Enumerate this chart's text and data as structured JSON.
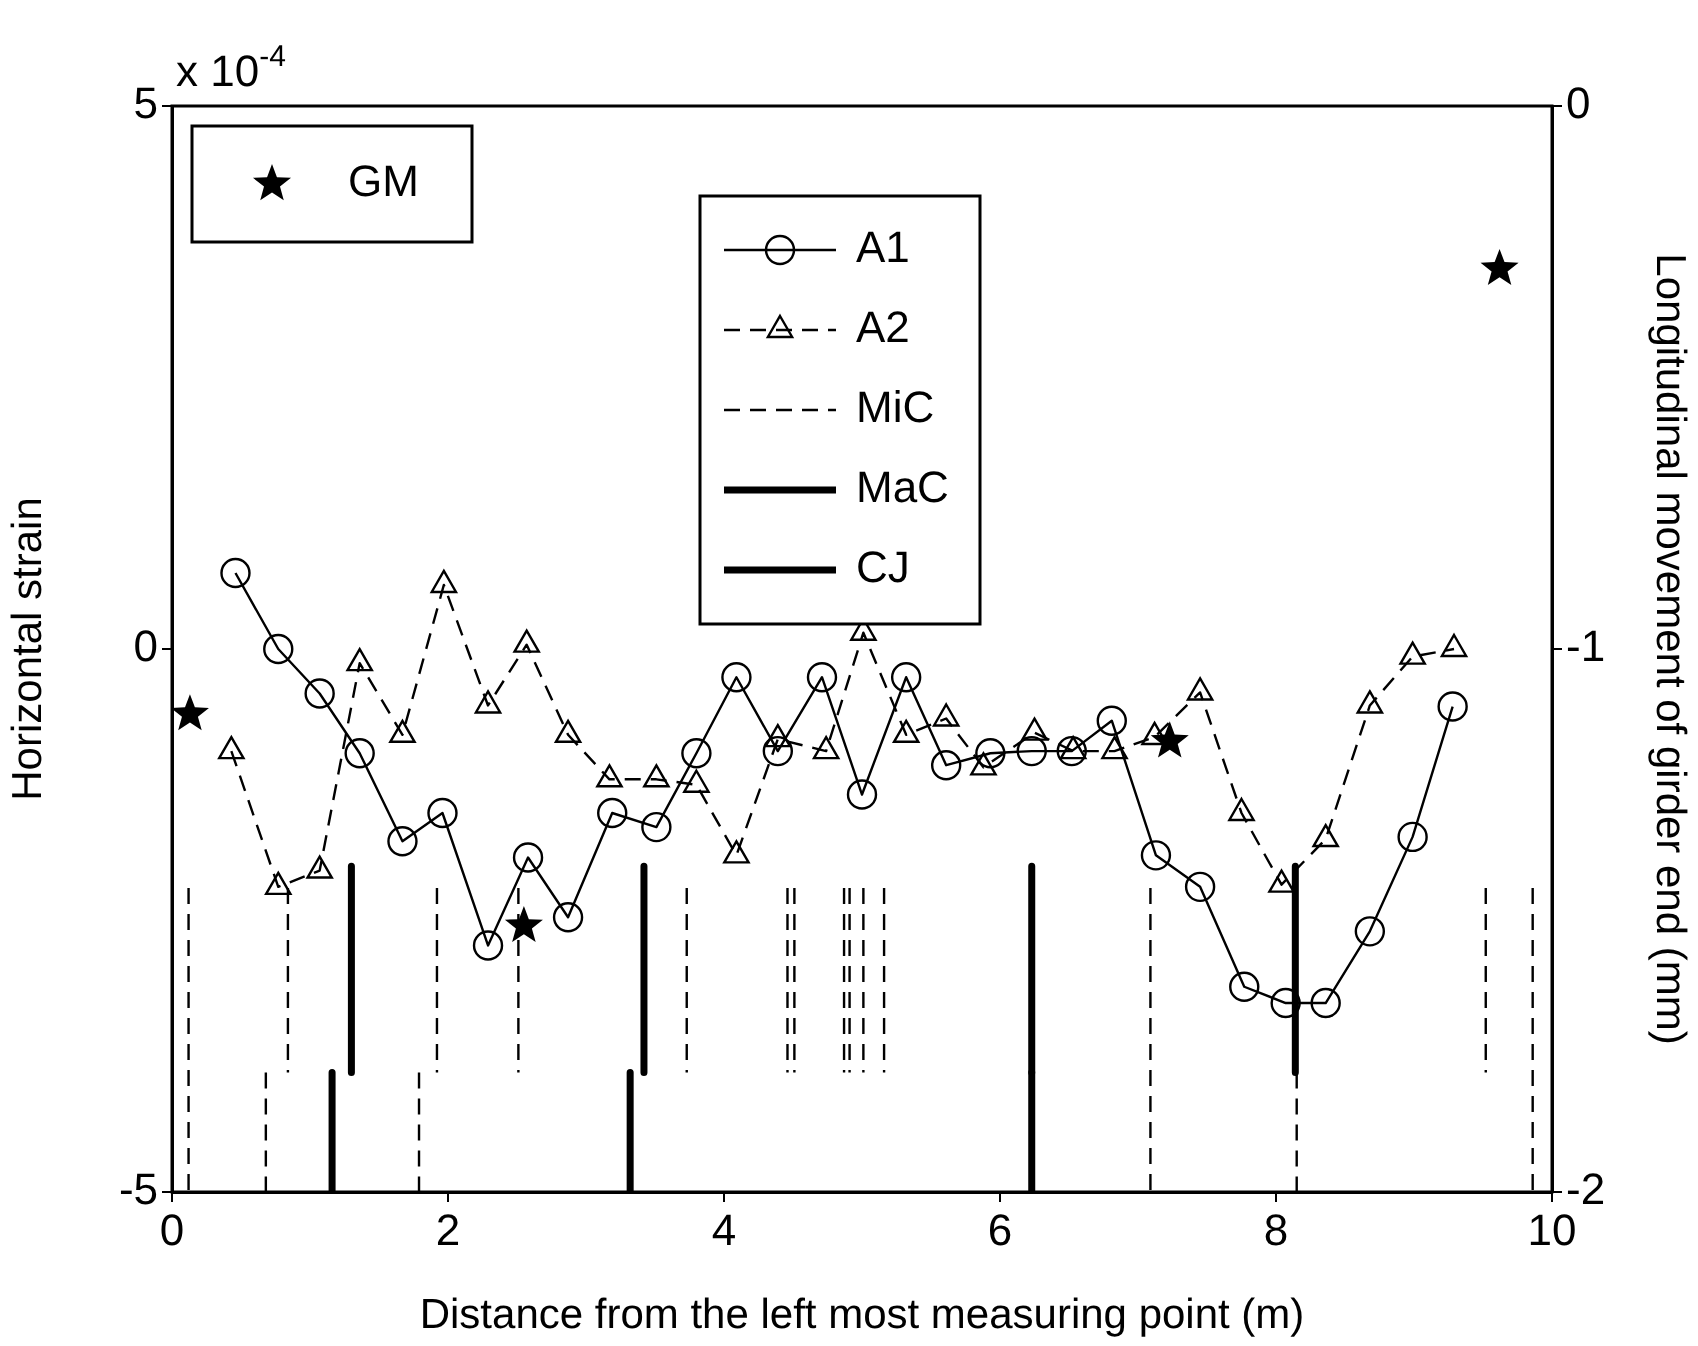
{
  "chart_data": {
    "type": "line",
    "xlabel": "Distance from the left most measuring point (m)",
    "ylabel": "Horizontal strain",
    "y2label": "Longitudinal movement of girder end (mm)",
    "annotations": [
      "x 10$^{-4}$"
    ],
    "xlim": [
      0,
      10
    ],
    "xticks": [
      0,
      2,
      4,
      6,
      8,
      10
    ],
    "ylim": [
      -5,
      5
    ],
    "yticks": [
      -5,
      0,
      5
    ],
    "y2lim": [
      -2,
      0
    ],
    "y2ticks": [
      -2,
      -1,
      0
    ],
    "grid": false,
    "legend": "top",
    "series": [
      {
        "name": "GM",
        "type": "scatter",
        "axis": "y2",
        "marker": "star",
        "color": "#000000",
        "x": [
          0.13,
          2.55,
          7.23,
          9.62
        ],
        "values": [
          -1.12,
          -1.51,
          -1.17,
          -0.3
        ]
      },
      {
        "name": "A1",
        "type": "line",
        "marker": "circle",
        "line_style": "solid",
        "color": "#000000",
        "x": [
          0.46,
          0.77,
          1.07,
          1.36,
          1.67,
          1.96,
          2.29,
          2.58,
          2.87,
          3.19,
          3.51,
          3.8,
          4.09,
          4.39,
          4.71,
          5.0,
          5.32,
          5.61,
          5.93,
          6.23,
          6.52,
          6.81,
          7.13,
          7.45,
          7.77,
          8.07,
          8.36,
          8.68,
          8.99,
          9.28
        ],
        "values": [
          0.7,
          0,
          -0.41,
          -0.96,
          -1.77,
          -1.51,
          -2.73,
          -1.92,
          -2.47,
          -1.51,
          -1.64,
          -0.96,
          -0.26,
          -0.94,
          -0.26,
          -1.34,
          -0.26,
          -1.07,
          -0.96,
          -0.94,
          -0.94,
          -0.66,
          -1.9,
          -2.19,
          -3.11,
          -3.26,
          -3.26,
          -2.6,
          -1.73,
          -0.53
        ]
      },
      {
        "name": "A2",
        "type": "line",
        "marker": "triangle",
        "line_style": "dashed",
        "color": "#000000",
        "x": [
          0.43,
          0.77,
          1.07,
          1.36,
          1.67,
          1.97,
          2.29,
          2.57,
          2.87,
          3.17,
          3.51,
          3.8,
          4.09,
          4.39,
          4.74,
          5.01,
          5.32,
          5.61,
          5.88,
          6.25,
          6.53,
          6.83,
          7.12,
          7.45,
          7.75,
          8.04,
          8.36,
          8.68,
          8.99,
          9.29
        ],
        "values": [
          -0.94,
          -2.19,
          -2.04,
          -0.13,
          -0.79,
          0.59,
          -0.52,
          0.04,
          -0.79,
          -1.2,
          -1.2,
          -1.25,
          -1.9,
          -0.83,
          -0.94,
          0.15,
          -0.79,
          -0.64,
          -1.09,
          -0.77,
          -0.94,
          -0.94,
          -0.81,
          -0.4,
          -1.51,
          -2.17,
          -1.75,
          -0.52,
          -0.07,
          0
        ]
      },
      {
        "name": "MiC",
        "type": "line",
        "marker": "none",
        "line_style": "dashed",
        "color": "#000000",
        "x": [
          0.12,
          0.12,
          null,
          7.09,
          7.09,
          null,
          9.86,
          9.86,
          null,
          0.84,
          0.84,
          null,
          1.92,
          1.92,
          null,
          2.51,
          2.51,
          null,
          3.73,
          3.73,
          null,
          4.46,
          4.46,
          null,
          4.51,
          4.51,
          null,
          4.87,
          4.87,
          null,
          4.91,
          4.91,
          null,
          5.01,
          5.01,
          null,
          5.16,
          5.16,
          null,
          9.52,
          9.52,
          null,
          0.68,
          0.68,
          null,
          1.79,
          1.79,
          null,
          8.15,
          8.15
        ],
        "values": [
          -2.2,
          -5,
          null,
          -2.2,
          -5,
          null,
          -2.2,
          -5,
          null,
          -2.2,
          -3.9,
          null,
          -2.2,
          -3.9,
          null,
          -2.2,
          -3.9,
          null,
          -2.2,
          -3.9,
          null,
          -2.2,
          -3.9,
          null,
          -2.2,
          -3.9,
          null,
          -2.2,
          -3.9,
          null,
          -2.2,
          -3.9,
          null,
          -2.2,
          -3.9,
          null,
          -2.2,
          -3.9,
          null,
          -2.2,
          -3.9,
          null,
          -3.9,
          -5,
          null,
          -3.9,
          -5,
          null,
          -3.9,
          -5
        ]
      },
      {
        "name": "MaC",
        "type": "line",
        "marker": "none",
        "line_style": "solid",
        "color": "#000000",
        "x": [
          1.3,
          1.3,
          null,
          3.42,
          3.42,
          null,
          6.23,
          6.23,
          null,
          8.14,
          8.14
        ],
        "values": [
          -2,
          -3.9,
          null,
          -2,
          -3.9,
          null,
          -2,
          -3.9,
          null,
          -2,
          -3.9
        ]
      },
      {
        "name": "CJ",
        "type": "line",
        "marker": "none",
        "line_style": "solid",
        "color": "#000000",
        "x": [
          1.16,
          1.16,
          null,
          3.32,
          3.32,
          null,
          6.23,
          6.23
        ],
        "values": [
          -3.9,
          -5,
          null,
          -3.9,
          -5,
          null,
          -3.9,
          -5
        ]
      }
    ]
  }
}
